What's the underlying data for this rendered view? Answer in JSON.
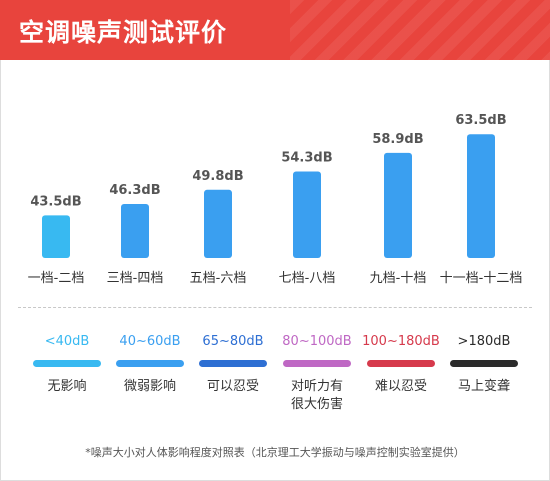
{
  "header": {
    "title": "空调噪声测试评价"
  },
  "chart_data": {
    "type": "bar",
    "categories": [
      "一档-二档",
      "三档-四档",
      "五档-六档",
      "七档-八档",
      "九档-十档",
      "十一档-十二档"
    ],
    "values": [
      43.5,
      46.3,
      49.8,
      54.3,
      58.9,
      63.5
    ],
    "value_labels": [
      "43.5dB",
      "46.3dB",
      "49.8dB",
      "54.3dB",
      "58.9dB",
      "63.5dB"
    ],
    "bar_colors": [
      "#38b9f1",
      "#3a9ff0",
      "#3a9ff0",
      "#3a9ff0",
      "#3a9ff0",
      "#3a9ff0"
    ],
    "title": "",
    "xlabel": "",
    "ylabel": "",
    "ylim": [
      33,
      67
    ],
    "grid": false
  },
  "legend": {
    "items": [
      {
        "range": "<40dB",
        "effect": [
          "无影响"
        ],
        "color": "#38b9f1"
      },
      {
        "range": "40~60dB",
        "effect": [
          "微弱影响"
        ],
        "color": "#3a9ff0"
      },
      {
        "range": "65~80dB",
        "effect": [
          "可以忍受"
        ],
        "color": "#2e6fd3"
      },
      {
        "range": "80~100dB",
        "effect": [
          "对听力有",
          "很大伤害"
        ],
        "color": "#bf68c4"
      },
      {
        "range": "100~180dB",
        "effect": [
          "难以忍受"
        ],
        "color": "#d63a4c"
      },
      {
        "range": ">180dB",
        "effect": [
          "马上变聋"
        ],
        "color": "#2b2b2b"
      }
    ]
  },
  "footnote": "*噪声大小对人体影响程度对照表（北京理工大学振动与噪声控制实验室提供）"
}
